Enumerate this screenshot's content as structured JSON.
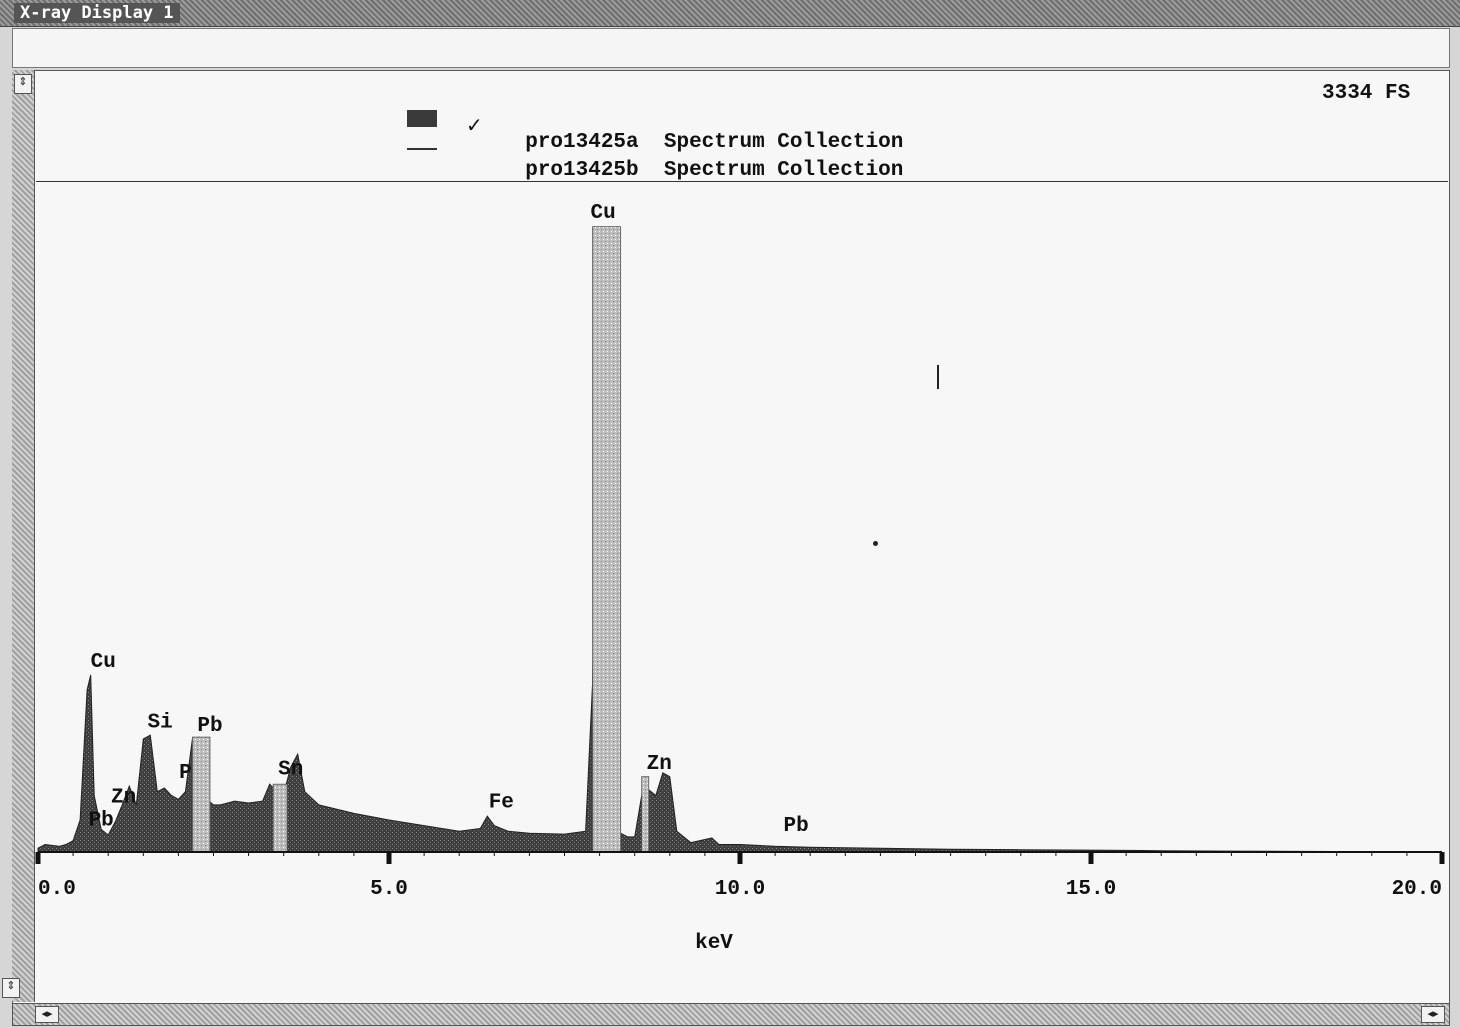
{
  "window": {
    "title": "X-ray Display 1"
  },
  "scale": {
    "readout": "3334 FS"
  },
  "legend": [
    {
      "marker": "filled",
      "checked": true,
      "name": "pro13425a",
      "description": "Spectrum Collection"
    },
    {
      "marker": "line",
      "checked": false,
      "name": "pro13425b",
      "description": "Spectrum Collection"
    }
  ],
  "colors": {
    "spectrum_fill": "#3f3f3f",
    "highlight_fill": "#bdbdbd",
    "background": "#f7f7f7"
  },
  "chart_data": {
    "type": "area",
    "xlabel": "keV",
    "xlim": [
      0.0,
      20.0
    ],
    "ylim": [
      0,
      3334
    ],
    "x_tick_labels": [
      "0.0",
      "5.0",
      "10.0",
      "15.0",
      "20.0"
    ],
    "x_ticks": [
      0,
      5,
      10,
      15,
      20
    ],
    "series": [
      {
        "name": "pro13425a",
        "x": [
          0.0,
          0.1,
          0.2,
          0.3,
          0.4,
          0.5,
          0.6,
          0.7,
          0.75,
          0.8,
          0.9,
          1.0,
          1.1,
          1.2,
          1.3,
          1.4,
          1.5,
          1.6,
          1.7,
          1.8,
          1.9,
          2.0,
          2.1,
          2.2,
          2.3,
          2.4,
          2.5,
          2.6,
          2.8,
          3.0,
          3.2,
          3.3,
          3.4,
          3.5,
          3.6,
          3.7,
          3.8,
          4.0,
          4.5,
          5.0,
          5.5,
          6.0,
          6.3,
          6.4,
          6.5,
          6.7,
          7.0,
          7.5,
          7.8,
          7.9,
          8.0,
          8.05,
          8.1,
          8.2,
          8.3,
          8.4,
          8.5,
          8.6,
          8.65,
          8.7,
          8.8,
          8.9,
          9.0,
          9.1,
          9.3,
          9.6,
          9.7,
          10.0,
          10.5,
          11.0,
          12.0,
          13.0,
          14.0,
          15.0,
          16.0,
          17.0,
          18.0,
          19.0,
          20.0
        ],
        "y": [
          20,
          40,
          35,
          30,
          40,
          60,
          170,
          860,
          940,
          300,
          120,
          90,
          160,
          250,
          350,
          250,
          600,
          620,
          320,
          340,
          300,
          280,
          320,
          600,
          610,
          280,
          250,
          250,
          270,
          260,
          270,
          360,
          320,
          310,
          450,
          520,
          320,
          250,
          205,
          170,
          140,
          110,
          125,
          190,
          140,
          110,
          100,
          95,
          110,
          900,
          3180,
          3320,
          1500,
          200,
          100,
          80,
          80,
          300,
          400,
          330,
          300,
          420,
          400,
          110,
          50,
          75,
          40,
          40,
          30,
          25,
          20,
          15,
          12,
          10,
          7,
          5,
          3,
          2,
          0
        ]
      }
    ],
    "highlight_bands": [
      {
        "x_start": 2.2,
        "x_end": 2.45,
        "y": 610
      },
      {
        "x_start": 3.35,
        "x_end": 3.55,
        "y": 360
      },
      {
        "x_start": 7.9,
        "x_end": 8.3,
        "y": 3320
      },
      {
        "x_start": 8.6,
        "x_end": 8.7,
        "y": 400
      }
    ],
    "annotations": [
      {
        "text": "Cu",
        "x": 8.05,
        "y": 3334
      },
      {
        "text": "Cu",
        "x": 0.93,
        "y": 950
      },
      {
        "text": "Si",
        "x": 1.74,
        "y": 630
      },
      {
        "text": "Pb",
        "x": 2.45,
        "y": 610
      },
      {
        "text": "P",
        "x": 2.1,
        "y": 360
      },
      {
        "text": "Zn",
        "x": 1.22,
        "y": 230
      },
      {
        "text": "Pb",
        "x": 0.9,
        "y": 110
      },
      {
        "text": "Sn",
        "x": 3.6,
        "y": 380
      },
      {
        "text": "Fe",
        "x": 6.6,
        "y": 205
      },
      {
        "text": "Zn",
        "x": 8.85,
        "y": 410
      },
      {
        "text": "Pb",
        "x": 10.8,
        "y": 80
      }
    ]
  }
}
